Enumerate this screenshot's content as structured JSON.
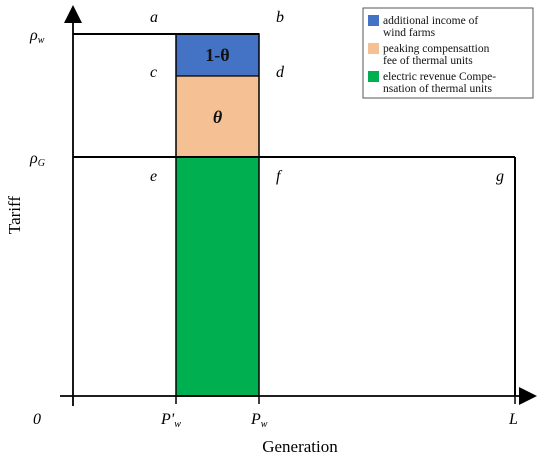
{
  "colors": {
    "blue": "#4472C4",
    "peach": "#F4C094",
    "green": "#00B050",
    "line": "#000000"
  },
  "axes": {
    "y_label": "Tariff",
    "x_label": "Generation",
    "origin": "0"
  },
  "y_ticks": {
    "rho_w": {
      "base": "ρ",
      "sub": "w"
    },
    "rho_g": {
      "base": "ρ",
      "sub": "G"
    }
  },
  "x_ticks": {
    "p_prime_w": {
      "base": "P'",
      "sub": "w"
    },
    "p_w": {
      "base": "P",
      "sub": "w"
    },
    "l": "L"
  },
  "points": {
    "a": "a",
    "b": "b",
    "c": "c",
    "d": "d",
    "e": "e",
    "f": "f",
    "g": "g"
  },
  "regions": {
    "top": "1-θ",
    "middle": "θ"
  },
  "legend": {
    "items": [
      {
        "color": "#4472C4",
        "lines": [
          "additional income of",
          "wind farms"
        ]
      },
      {
        "color": "#F4C094",
        "lines": [
          "peaking compensattion",
          "fee of thermal units"
        ]
      },
      {
        "color": "#00B050",
        "lines": [
          "electric revenue Compe-",
          "nsation of thermal units"
        ]
      }
    ]
  }
}
